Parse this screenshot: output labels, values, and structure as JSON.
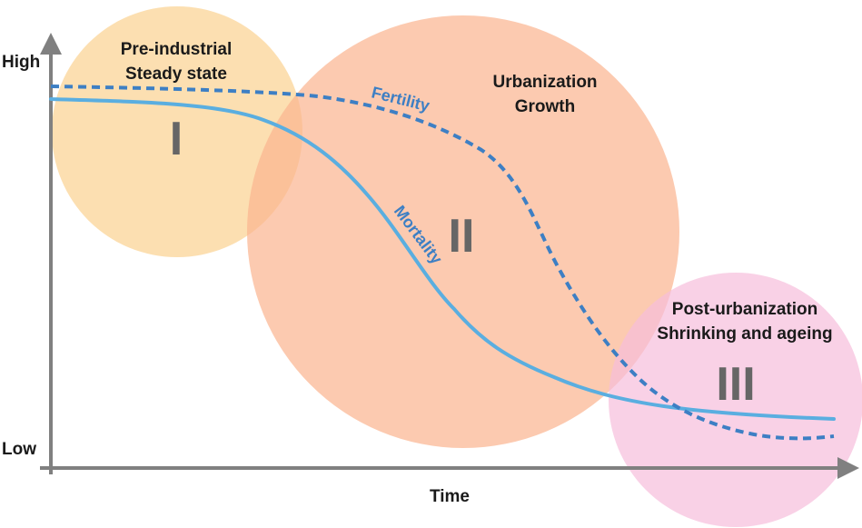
{
  "axes": {
    "y_high": "High",
    "y_low": "Low",
    "x_label": "Time"
  },
  "stages": [
    {
      "numeral": "I",
      "line1": "Pre-industrial",
      "line2": "Steady state",
      "color": "#fbd79e"
    },
    {
      "numeral": "II",
      "line1": "Urbanization",
      "line2": "Growth",
      "color": "#fbc2a0"
    },
    {
      "numeral": "III",
      "line1": "Post-urbanization",
      "line2": "Shrinking and ageing",
      "color": "#f7c9e0"
    }
  ],
  "curves": {
    "fertility": {
      "label": "Fertility",
      "style": "dashed",
      "color": "#3d7fc4"
    },
    "mortality": {
      "label": "Mortality",
      "style": "solid",
      "color": "#5aaee0"
    }
  },
  "colors": {
    "axis": "#808080",
    "numeral": "#666666",
    "curve_label": "#3d7fc4"
  }
}
